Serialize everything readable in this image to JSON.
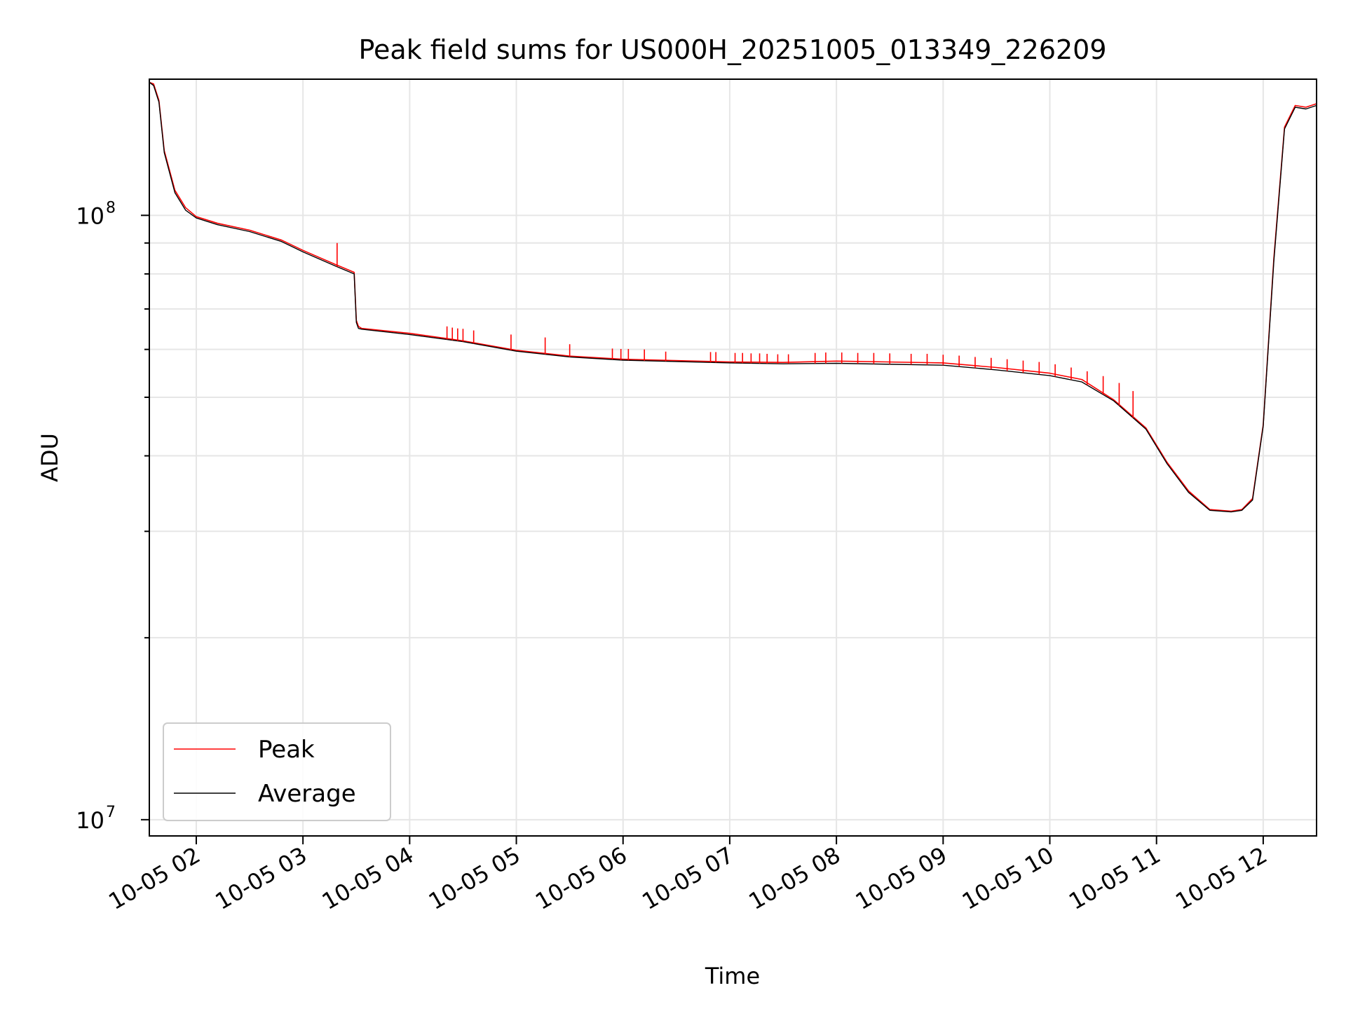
{
  "chart_data": {
    "type": "line",
    "title": "Peak field sums for US000H_20251005_013349_226209",
    "xlabel": "Time",
    "ylabel": "ADU",
    "yscale": "log",
    "ylim": [
      9400000,
      168000000
    ],
    "xlim": [
      1.56,
      12.5
    ],
    "grid": true,
    "legend_position": "lower-left",
    "x_ticks": [
      {
        "value": 2,
        "label": "10-05 02"
      },
      {
        "value": 3,
        "label": "10-05 03"
      },
      {
        "value": 4,
        "label": "10-05 04"
      },
      {
        "value": 5,
        "label": "10-05 05"
      },
      {
        "value": 6,
        "label": "10-05 06"
      },
      {
        "value": 7,
        "label": "10-05 07"
      },
      {
        "value": 8,
        "label": "10-05 08"
      },
      {
        "value": 9,
        "label": "10-05 09"
      },
      {
        "value": 10,
        "label": "10-05 10"
      },
      {
        "value": 11,
        "label": "10-05 11"
      },
      {
        "value": 12,
        "label": "10-05 12"
      }
    ],
    "y_major_ticks": [
      {
        "value": 10000000,
        "base": "10",
        "exp": "7"
      },
      {
        "value": 100000000,
        "base": "10",
        "exp": "8"
      }
    ],
    "y_minor_ticks": [
      20000000,
      30000000,
      40000000,
      50000000,
      60000000,
      70000000,
      80000000,
      90000000
    ],
    "series": [
      {
        "name": "Peak",
        "color": "#ff0000",
        "x": [
          1.56,
          1.6,
          1.65,
          1.7,
          1.8,
          1.9,
          2.0,
          2.2,
          2.5,
          2.8,
          3.0,
          3.3,
          3.48,
          3.5,
          3.52,
          3.55,
          4.0,
          4.5,
          5.0,
          5.5,
          6.0,
          7.0,
          7.5,
          8.0,
          9.0,
          9.5,
          10.0,
          10.3,
          10.6,
          10.9,
          11.1,
          11.3,
          11.5,
          11.7,
          11.8,
          11.9,
          12.0,
          12.1,
          12.2,
          12.3,
          12.4,
          12.5
        ],
        "y": [
          166000000,
          165000000,
          155000000,
          128000000,
          110000000,
          103000000,
          99500000,
          97000000,
          94500000,
          91000000,
          87500000,
          83000000,
          80500000,
          67000000,
          65500000,
          65000000,
          63800000,
          62000000,
          59800000,
          58500000,
          57800000,
          57200000,
          57100000,
          57400000,
          57000000,
          56000000,
          54800000,
          53500000,
          49500000,
          44500000,
          39000000,
          35000000,
          32600000,
          32400000,
          32600000,
          34000000,
          45000000,
          85000000,
          140000000,
          152000000,
          151000000,
          153000000
        ]
      },
      {
        "name": "Average",
        "color": "#000000",
        "x": [
          1.56,
          1.6,
          1.65,
          1.7,
          1.8,
          1.9,
          2.0,
          2.2,
          2.5,
          2.8,
          3.0,
          3.3,
          3.48,
          3.5,
          3.52,
          3.55,
          4.0,
          4.5,
          5.0,
          5.5,
          6.0,
          7.0,
          7.5,
          8.0,
          9.0,
          9.5,
          10.0,
          10.3,
          10.6,
          10.9,
          11.1,
          11.3,
          11.5,
          11.7,
          11.8,
          11.9,
          12.0,
          12.1,
          12.2,
          12.3,
          12.4,
          12.5
        ],
        "y": [
          166000000,
          164000000,
          154000000,
          127000000,
          109000000,
          102000000,
          99000000,
          96500000,
          94000000,
          90500000,
          87000000,
          82500000,
          80000000,
          66500000,
          65000000,
          64800000,
          63500000,
          61800000,
          59600000,
          58300000,
          57600000,
          57000000,
          56800000,
          56900000,
          56500000,
          55500000,
          54300000,
          53000000,
          49300000,
          44300000,
          38800000,
          34800000,
          32500000,
          32300000,
          32500000,
          33800000,
          44800000,
          84000000,
          139000000,
          151000000,
          150000000,
          152000000
        ]
      }
    ],
    "peak_spikes": {
      "color": "#ff0000",
      "points": [
        [
          3.32,
          90000000
        ],
        [
          4.35,
          65500000
        ],
        [
          4.4,
          65200000
        ],
        [
          4.45,
          65000000
        ],
        [
          4.5,
          64900000
        ],
        [
          4.6,
          64500000
        ],
        [
          4.95,
          63500000
        ],
        [
          5.27,
          62800000
        ],
        [
          5.5,
          61200000
        ],
        [
          5.9,
          60200000
        ],
        [
          5.98,
          60100000
        ],
        [
          6.05,
          60100000
        ],
        [
          6.2,
          60000000
        ],
        [
          6.4,
          59500000
        ],
        [
          6.82,
          59400000
        ],
        [
          6.87,
          59400000
        ],
        [
          7.05,
          59200000
        ],
        [
          7.12,
          59200000
        ],
        [
          7.2,
          59100000
        ],
        [
          7.28,
          59100000
        ],
        [
          7.35,
          59000000
        ],
        [
          7.45,
          58900000
        ],
        [
          7.55,
          58900000
        ],
        [
          7.8,
          59200000
        ],
        [
          7.9,
          59300000
        ],
        [
          8.05,
          59300000
        ],
        [
          8.2,
          59200000
        ],
        [
          8.35,
          59200000
        ],
        [
          8.5,
          59100000
        ],
        [
          8.7,
          59000000
        ],
        [
          8.85,
          59000000
        ],
        [
          9.0,
          58800000
        ],
        [
          9.15,
          58600000
        ],
        [
          9.3,
          58300000
        ],
        [
          9.45,
          58100000
        ],
        [
          9.6,
          57800000
        ],
        [
          9.75,
          57500000
        ],
        [
          9.9,
          57200000
        ],
        [
          10.05,
          56700000
        ],
        [
          10.2,
          56000000
        ],
        [
          10.35,
          55200000
        ],
        [
          10.5,
          54200000
        ],
        [
          10.65,
          52800000
        ],
        [
          10.78,
          51200000
        ]
      ]
    },
    "legend": [
      {
        "label": "Peak",
        "color": "#ff0000"
      },
      {
        "label": "Average",
        "color": "#000000"
      }
    ]
  }
}
